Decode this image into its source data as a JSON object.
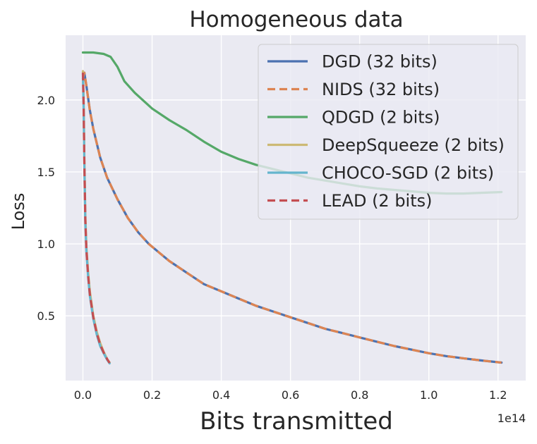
{
  "chart_data": {
    "type": "line",
    "title": "Homogeneous data",
    "xlabel": "Bits transmitted",
    "ylabel": "Loss",
    "x_offset_label": "1e14",
    "xlim": [
      -0.05,
      1.28
    ],
    "ylim": [
      0.05,
      2.45
    ],
    "x_ticks": [
      0.0,
      0.2,
      0.4,
      0.6,
      0.8,
      1.0,
      1.2
    ],
    "x_tick_labels": [
      "0.0",
      "0.2",
      "0.4",
      "0.6",
      "0.8",
      "1.0",
      "1.2"
    ],
    "y_ticks": [
      0.5,
      1.0,
      1.5,
      2.0
    ],
    "y_tick_labels": [
      "0.5",
      "1.0",
      "1.5",
      "2.0"
    ],
    "grid": true,
    "legend_position": "top-right",
    "background": "#eaeaf2",
    "series": [
      {
        "name": "DGD (32 bits)",
        "color": "#4c72b0",
        "dash": "solid",
        "x": [
          0.0,
          0.004,
          0.01,
          0.02,
          0.03,
          0.05,
          0.07,
          0.1,
          0.13,
          0.16,
          0.19,
          0.22,
          0.25,
          0.3,
          0.35,
          0.4,
          0.45,
          0.5,
          0.55,
          0.6,
          0.65,
          0.7,
          0.75,
          0.8,
          0.85,
          0.9,
          0.95,
          1.0,
          1.05,
          1.1,
          1.15,
          1.21
        ],
        "y": [
          2.15,
          2.19,
          2.1,
          1.93,
          1.8,
          1.6,
          1.46,
          1.31,
          1.18,
          1.08,
          1.0,
          0.94,
          0.88,
          0.8,
          0.72,
          0.67,
          0.62,
          0.57,
          0.53,
          0.49,
          0.45,
          0.41,
          0.38,
          0.35,
          0.32,
          0.29,
          0.265,
          0.24,
          0.22,
          0.205,
          0.19,
          0.175
        ]
      },
      {
        "name": "NIDS (32 bits)",
        "color": "#dd8452",
        "dash": "dashed",
        "x": [
          0.0,
          0.004,
          0.01,
          0.02,
          0.03,
          0.05,
          0.07,
          0.1,
          0.13,
          0.16,
          0.19,
          0.22,
          0.25,
          0.3,
          0.35,
          0.4,
          0.45,
          0.5,
          0.55,
          0.6,
          0.65,
          0.7,
          0.75,
          0.8,
          0.85,
          0.9,
          0.95,
          1.0,
          1.05,
          1.1,
          1.15,
          1.21
        ],
        "y": [
          2.15,
          2.19,
          2.1,
          1.93,
          1.8,
          1.6,
          1.46,
          1.31,
          1.18,
          1.08,
          1.0,
          0.94,
          0.88,
          0.8,
          0.72,
          0.67,
          0.62,
          0.57,
          0.53,
          0.49,
          0.45,
          0.41,
          0.38,
          0.35,
          0.32,
          0.29,
          0.265,
          0.24,
          0.22,
          0.205,
          0.19,
          0.175
        ]
      },
      {
        "name": "QDGD (2 bits)",
        "color": "#55a868",
        "dash": "solid",
        "x": [
          0.0,
          0.03,
          0.06,
          0.08,
          0.1,
          0.12,
          0.15,
          0.2,
          0.25,
          0.3,
          0.35,
          0.4,
          0.45,
          0.5,
          0.55,
          0.6,
          0.65,
          0.7,
          0.75,
          0.8,
          0.85,
          0.9,
          0.95,
          1.0,
          1.05,
          1.1,
          1.15,
          1.21
        ],
        "y": [
          2.33,
          2.33,
          2.32,
          2.3,
          2.23,
          2.13,
          2.05,
          1.94,
          1.86,
          1.79,
          1.71,
          1.64,
          1.59,
          1.55,
          1.52,
          1.49,
          1.46,
          1.44,
          1.42,
          1.4,
          1.385,
          1.375,
          1.365,
          1.355,
          1.35,
          1.35,
          1.355,
          1.36
        ]
      },
      {
        "name": "DeepSqueeze (2 bits)",
        "color": "#ccb974",
        "dash": "solid",
        "x": [
          0.0,
          0.002,
          0.004,
          0.007,
          0.01,
          0.015,
          0.02,
          0.03,
          0.04,
          0.05,
          0.06,
          0.07,
          0.077
        ],
        "y": [
          2.2,
          2.0,
          1.6,
          1.2,
          0.98,
          0.8,
          0.67,
          0.5,
          0.39,
          0.31,
          0.25,
          0.2,
          0.175
        ]
      },
      {
        "name": "CHOCO-SGD (2 bits)",
        "color": "#64b5cd",
        "dash": "solid",
        "x": [
          0.0,
          0.002,
          0.004,
          0.007,
          0.01,
          0.015,
          0.02,
          0.03,
          0.04,
          0.05,
          0.06,
          0.07,
          0.077
        ],
        "y": [
          2.18,
          1.95,
          1.55,
          1.15,
          0.95,
          0.77,
          0.64,
          0.48,
          0.37,
          0.29,
          0.24,
          0.195,
          0.17
        ]
      },
      {
        "name": "LEAD (2 bits)",
        "color": "#c44e52",
        "dash": "dashed",
        "x": [
          0.0,
          0.002,
          0.004,
          0.007,
          0.01,
          0.015,
          0.02,
          0.03,
          0.04,
          0.05,
          0.06,
          0.07,
          0.077
        ],
        "y": [
          2.19,
          1.97,
          1.57,
          1.17,
          0.96,
          0.78,
          0.65,
          0.49,
          0.38,
          0.3,
          0.245,
          0.2,
          0.172
        ]
      }
    ]
  }
}
